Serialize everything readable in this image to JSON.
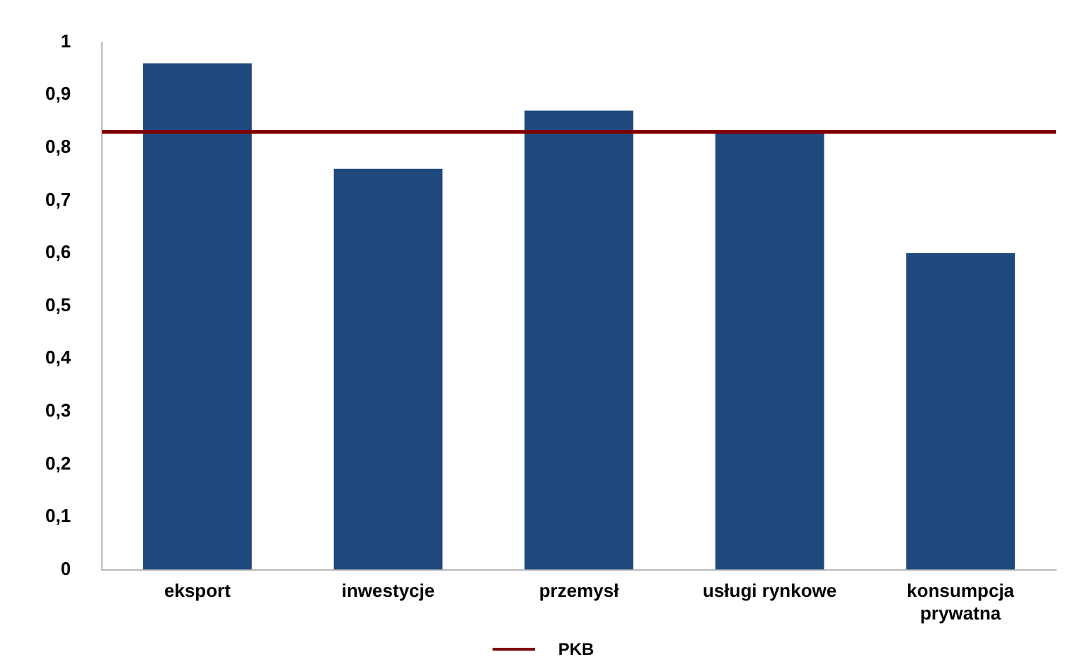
{
  "chart_data": {
    "type": "bar",
    "categories": [
      "eksport",
      "inwestycje",
      "przemysł",
      "usługi rynkowe",
      "konsumpcja\nprywatna"
    ],
    "values": [
      0.96,
      0.76,
      0.87,
      0.83,
      0.6
    ],
    "color": "#1f497d",
    "ylim": [
      0,
      1
    ],
    "yticks": [
      {
        "value": 0,
        "label": "0"
      },
      {
        "value": 0.1,
        "label": "0,1"
      },
      {
        "value": 0.2,
        "label": "0,2"
      },
      {
        "value": 0.3,
        "label": "0,3"
      },
      {
        "value": 0.4,
        "label": "0,4"
      },
      {
        "value": 0.5,
        "label": "0,5"
      },
      {
        "value": 0.6,
        "label": "0,6"
      },
      {
        "value": 0.7,
        "label": "0,7"
      },
      {
        "value": 0.8,
        "label": "0,8"
      },
      {
        "value": 0.9,
        "label": "0,9"
      },
      {
        "value": 1,
        "label": "1"
      }
    ],
    "ref_lines": [
      {
        "axis": "y",
        "value": 0.83,
        "label": "PKB",
        "color": "#7f0000"
      }
    ],
    "grid": false,
    "legend": "bottom"
  }
}
